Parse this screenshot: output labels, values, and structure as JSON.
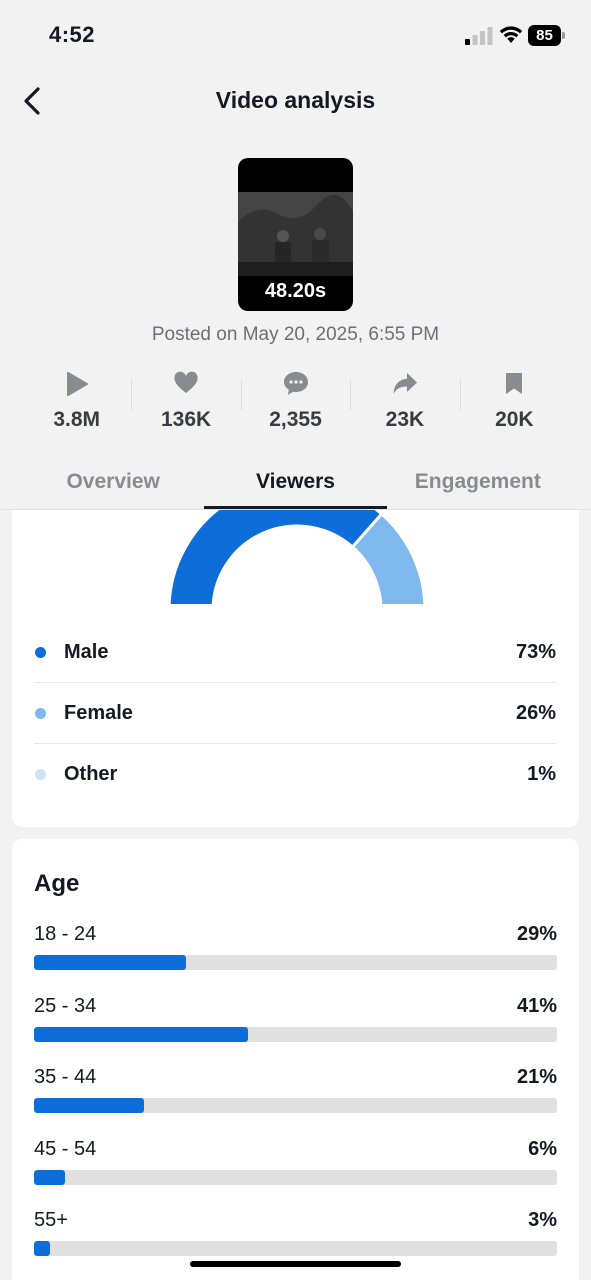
{
  "status_bar": {
    "time": "4:52",
    "battery": "85"
  },
  "header": {
    "title": "Video analysis"
  },
  "video": {
    "duration": "48.20s",
    "posted": "Posted on May 20, 2025, 6:55 PM"
  },
  "stats": [
    {
      "icon": "play-icon",
      "value": "3.8M"
    },
    {
      "icon": "heart-icon",
      "value": "136K"
    },
    {
      "icon": "comment-icon",
      "value": "2,355"
    },
    {
      "icon": "share-icon",
      "value": "23K"
    },
    {
      "icon": "bookmark-icon",
      "value": "20K"
    }
  ],
  "tabs": [
    {
      "label": "Overview",
      "active": false
    },
    {
      "label": "Viewers",
      "active": true
    },
    {
      "label": "Engagement",
      "active": false
    }
  ],
  "gender": {
    "items": [
      {
        "label": "Male",
        "value": "73%",
        "fraction": 0.73,
        "color": "#0d6ed9"
      },
      {
        "label": "Female",
        "value": "26%",
        "fraction": 0.26,
        "color": "#7fb8ec"
      },
      {
        "label": "Other",
        "value": "1%",
        "fraction": 0.01,
        "color": "#cde3f7"
      }
    ]
  },
  "age": {
    "title": "Age",
    "rows": [
      {
        "label": "18 - 24",
        "value": "29%",
        "fraction": 0.29
      },
      {
        "label": "25 - 34",
        "value": "41%",
        "fraction": 0.41
      },
      {
        "label": "35 - 44",
        "value": "21%",
        "fraction": 0.21
      },
      {
        "label": "45 - 54",
        "value": "6%",
        "fraction": 0.06
      },
      {
        "label": "55+",
        "value": "3%",
        "fraction": 0.03
      }
    ]
  }
}
